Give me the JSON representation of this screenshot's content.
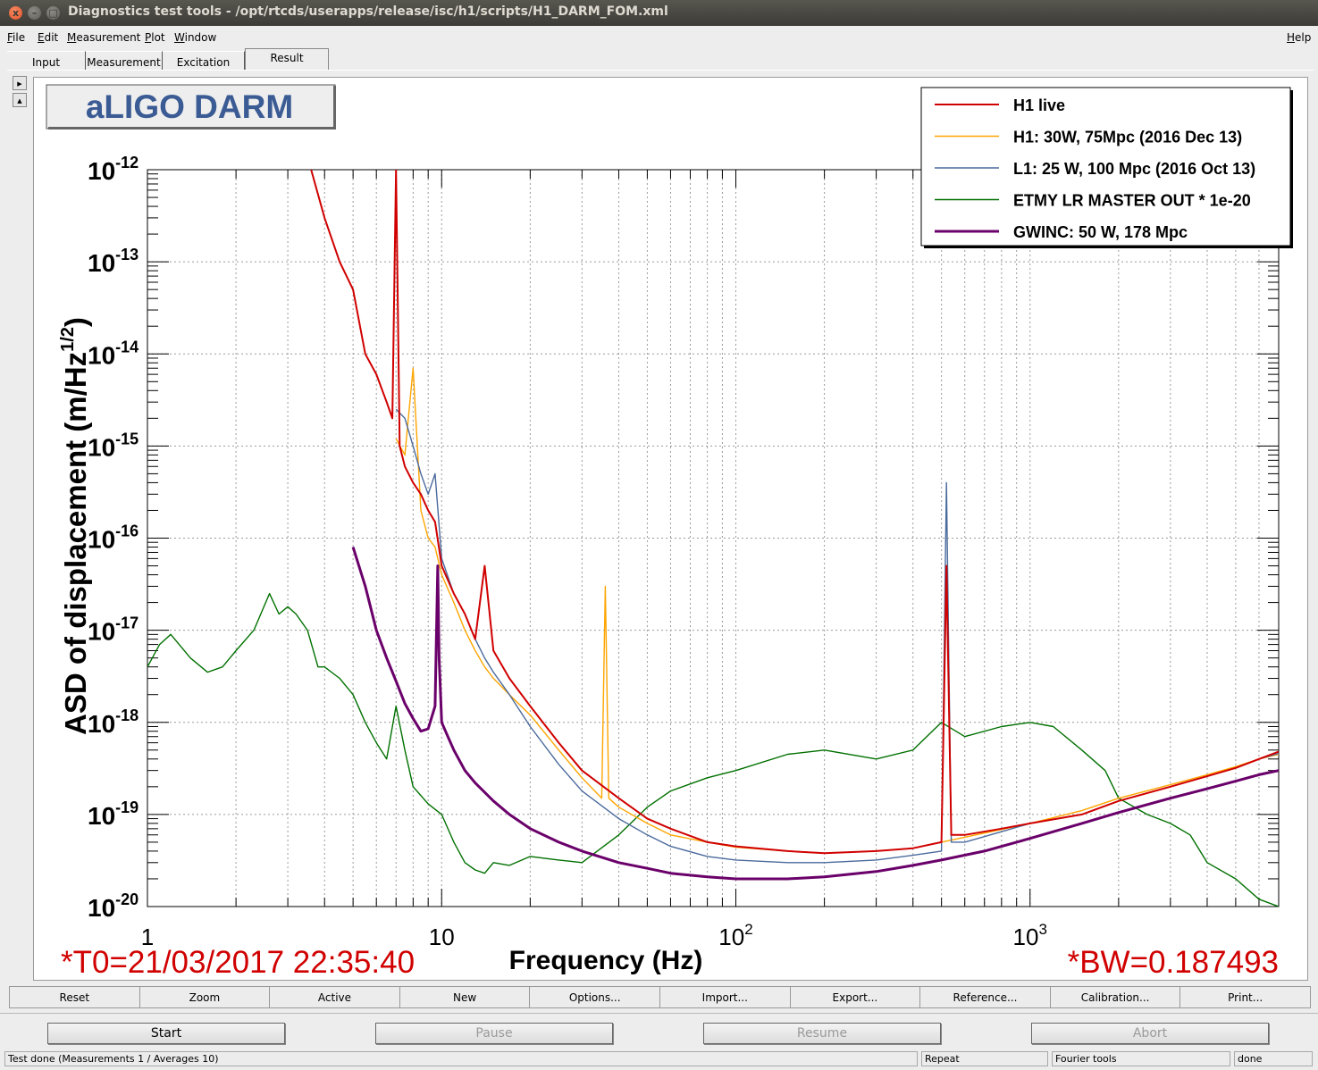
{
  "window": {
    "title": "Diagnostics test tools - /opt/rtcds/userapps/release/isc/h1/scripts/H1_DARM_FOM.xml",
    "close": "x",
    "minimize": "–",
    "maximize": "□"
  },
  "menu": {
    "file": "File",
    "edit": "Edit",
    "measurement": "Measurement",
    "plot": "Plot",
    "window": "Window",
    "help": "Help"
  },
  "tabs": [
    {
      "label": "Input"
    },
    {
      "label": "Measurement"
    },
    {
      "label": "Excitation"
    },
    {
      "label": "Result",
      "active": true
    }
  ],
  "plot": {
    "title_box": "aLIGO DARM",
    "t0_label": "*T0=21/03/2017 22:35:40",
    "bw_label": "*BW=0.187493"
  },
  "chart_data": {
    "type": "line",
    "title": "aLIGO DARM",
    "xlabel": "Frequency (Hz)",
    "ylabel": "ASD of displacement (m/Hz^(1/2))",
    "xscale": "log",
    "yscale": "log",
    "xlim": [
      1,
      7000
    ],
    "ylim": [
      1e-20,
      1e-12
    ],
    "grid": true,
    "legend_position": "top-right",
    "x_tick_labels": [
      {
        "base": "1",
        "exp": ""
      },
      {
        "base": "10",
        "exp": ""
      },
      {
        "base": "10",
        "exp": "2"
      },
      {
        "base": "10",
        "exp": "3"
      }
    ],
    "y_tick_labels": [
      {
        "base": "10",
        "exp": "-12"
      },
      {
        "base": "10",
        "exp": "-13"
      },
      {
        "base": "10",
        "exp": "-14"
      },
      {
        "base": "10",
        "exp": "-15"
      },
      {
        "base": "10",
        "exp": "-16"
      },
      {
        "base": "10",
        "exp": "-17"
      },
      {
        "base": "10",
        "exp": "-18"
      },
      {
        "base": "10",
        "exp": "-19"
      },
      {
        "base": "10",
        "exp": "-20"
      }
    ],
    "series": [
      {
        "name": "H1 live",
        "color": "#d00000",
        "width": 2,
        "x": [
          3.6,
          4.0,
          4.5,
          5.0,
          5.5,
          6.0,
          6.5,
          6.8,
          7.0,
          7.2,
          7.5,
          8.0,
          8.5,
          9.0,
          9.5,
          10,
          11,
          12,
          13,
          14,
          15,
          17,
          20,
          25,
          30,
          40,
          50,
          60,
          80,
          100,
          150,
          200,
          300,
          400,
          500,
          520,
          540,
          600,
          800,
          1000,
          1500,
          2000,
          3000,
          4000,
          5000,
          6000,
          7000
        ],
        "y": [
          1e-12,
          3e-13,
          1e-13,
          5e-14,
          1e-14,
          6e-15,
          3e-15,
          2e-15,
          1e-12,
          1e-15,
          6e-16,
          4e-16,
          3e-16,
          2e-16,
          1.5e-16,
          5e-17,
          2.5e-17,
          1.5e-17,
          8e-18,
          5e-17,
          6e-18,
          3e-18,
          1.5e-18,
          6e-19,
          3e-19,
          1.5e-19,
          9e-20,
          7e-20,
          5e-20,
          4.5e-20,
          4e-20,
          3.8e-20,
          4e-20,
          4.3e-20,
          5e-20,
          5e-17,
          6e-20,
          6e-20,
          7e-20,
          8e-20,
          1e-19,
          1.4e-19,
          2e-19,
          2.6e-19,
          3.2e-19,
          4e-19,
          4.8e-19
        ]
      },
      {
        "name": "H1: 30W, 75Mpc (2016 Dec 13)",
        "color": "#ffa500",
        "width": 1.4,
        "x": [
          7.0,
          7.5,
          8.0,
          8.5,
          9.0,
          9.5,
          10,
          11,
          12,
          13,
          14,
          15,
          17,
          20,
          25,
          30,
          35,
          36,
          37,
          40,
          50,
          60,
          80,
          100,
          150,
          200,
          300,
          400,
          500,
          1000,
          1500,
          2000,
          3000,
          4000,
          5000,
          6000,
          7000
        ],
        "y": [
          1.2e-15,
          8e-16,
          7e-15,
          2e-16,
          1e-16,
          8e-17,
          4e-17,
          2e-17,
          1e-17,
          6e-18,
          4e-18,
          3e-18,
          2e-18,
          1.2e-18,
          5e-19,
          2.5e-19,
          1.5e-19,
          3e-17,
          1.5e-19,
          1.2e-19,
          8e-20,
          6e-20,
          5e-20,
          4.4e-20,
          4e-20,
          3.8e-20,
          4e-20,
          4.3e-20,
          5e-20,
          8e-20,
          1.1e-19,
          1.5e-19,
          2.1e-19,
          2.7e-19,
          3.3e-19,
          4e-19,
          4.5e-19
        ]
      },
      {
        "name": "L1: 25 W, 100 Mpc (2016 Oct 13)",
        "color": "#4a6a9c",
        "width": 1.4,
        "x": [
          7.0,
          7.5,
          8.0,
          8.5,
          9.0,
          9.5,
          10,
          11,
          12,
          13,
          14,
          15,
          17,
          20,
          25,
          30,
          40,
          50,
          60,
          80,
          100,
          150,
          200,
          300,
          400,
          500,
          520,
          540,
          600,
          800,
          1000,
          1500,
          2000,
          3000,
          4000,
          5000,
          6000,
          7000
        ],
        "y": [
          2.5e-15,
          2e-15,
          1e-15,
          5e-16,
          3e-16,
          5e-16,
          6e-17,
          2.5e-17,
          1.5e-17,
          8e-18,
          5e-18,
          3.5e-18,
          2e-18,
          9e-19,
          3.5e-19,
          1.8e-19,
          9e-20,
          6e-20,
          4.5e-20,
          3.5e-20,
          3.2e-20,
          3e-20,
          3e-20,
          3.2e-20,
          3.6e-20,
          4e-20,
          4e-16,
          5e-20,
          5e-20,
          6.5e-20,
          8e-20,
          1e-19,
          1.4e-19,
          2e-19,
          2.6e-19,
          3.2e-19,
          4e-19,
          4.6e-19
        ]
      },
      {
        "name": "ETMY LR MASTER OUT * 1e-20",
        "color": "#007000",
        "width": 1.4,
        "x": [
          1.0,
          1.1,
          1.2,
          1.4,
          1.6,
          1.8,
          2.0,
          2.3,
          2.6,
          2.8,
          3.0,
          3.2,
          3.5,
          3.8,
          4.0,
          4.5,
          5.0,
          5.5,
          6.0,
          6.5,
          7.0,
          7.5,
          8.0,
          9.0,
          10,
          11,
          12,
          13,
          14,
          15,
          17,
          20,
          25,
          30,
          40,
          50,
          60,
          80,
          100,
          150,
          200,
          300,
          400,
          500,
          600,
          800,
          1000,
          1200,
          1500,
          1800,
          2000,
          2500,
          3000,
          3500,
          4000,
          5000,
          6000,
          7000
        ],
        "y": [
          4e-18,
          7e-18,
          9e-18,
          5e-18,
          3.5e-18,
          4e-18,
          6e-18,
          1e-17,
          2.5e-17,
          1.5e-17,
          1.8e-17,
          1.5e-17,
          1e-17,
          4e-18,
          4e-18,
          3e-18,
          2e-18,
          1e-18,
          6e-19,
          4e-19,
          1.5e-18,
          5e-19,
          2e-19,
          1.3e-19,
          1e-19,
          5e-20,
          3e-20,
          2.5e-20,
          2.3e-20,
          3e-20,
          2.8e-20,
          3.5e-20,
          3.2e-20,
          3e-20,
          6e-20,
          1.2e-19,
          1.8e-19,
          2.5e-19,
          3e-19,
          4.5e-19,
          5e-19,
          4e-19,
          5e-19,
          1e-18,
          7e-19,
          9e-19,
          1e-18,
          9e-19,
          5e-19,
          3e-19,
          1.5e-19,
          1e-19,
          8e-20,
          6e-20,
          3e-20,
          2e-20,
          1.2e-20,
          1e-20
        ]
      },
      {
        "name": "GWINC: 50 W, 178 Mpc",
        "color": "#6a006a",
        "width": 3,
        "x": [
          5.0,
          5.5,
          6.0,
          6.5,
          7.0,
          7.5,
          8.0,
          8.5,
          9.0,
          9.5,
          9.7,
          9.8,
          10,
          10.5,
          11,
          12,
          13,
          15,
          17,
          20,
          25,
          30,
          40,
          50,
          60,
          80,
          100,
          150,
          200,
          300,
          400,
          500,
          700,
          1000,
          1500,
          2000,
          3000,
          4000,
          5000,
          6000,
          7000
        ],
        "y": [
          8e-17,
          3e-17,
          1e-17,
          5e-18,
          2.8e-18,
          1.6e-18,
          1.1e-18,
          8e-19,
          8.5e-19,
          1.5e-18,
          5e-17,
          5e-18,
          1e-18,
          7e-19,
          5e-19,
          3e-19,
          2.2e-19,
          1.4e-19,
          1e-19,
          7e-20,
          5e-20,
          4e-20,
          3e-20,
          2.6e-20,
          2.3e-20,
          2.1e-20,
          2e-20,
          2e-20,
          2.1e-20,
          2.4e-20,
          2.8e-20,
          3.2e-20,
          4e-20,
          5.5e-20,
          8e-20,
          1.05e-19,
          1.5e-19,
          1.9e-19,
          2.3e-19,
          2.7e-19,
          3e-19
        ]
      }
    ]
  },
  "buttons": [
    "Reset",
    "Zoom",
    "Active",
    "New",
    "Options...",
    "Import...",
    "Export...",
    "Reference...",
    "Calibration...",
    "Print..."
  ],
  "controls": {
    "start": {
      "label": "Start",
      "enabled": true
    },
    "pause": {
      "label": "Pause",
      "enabled": false
    },
    "resume": {
      "label": "Resume",
      "enabled": false
    },
    "abort": {
      "label": "Abort",
      "enabled": false
    }
  },
  "status": {
    "message": "Test done (Measurements 1 / Averages 10)",
    "repeat": "Repeat",
    "tool": "Fourier tools",
    "state": "done"
  }
}
